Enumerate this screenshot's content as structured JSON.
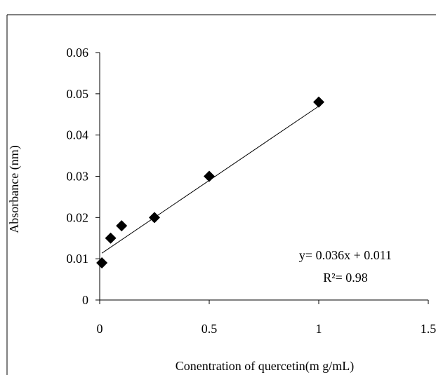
{
  "chart_data": {
    "type": "scatter",
    "title": "",
    "xlabel": "Conentration of quercetin(m g/mL)",
    "ylabel": "Absorbance (nm)",
    "xlim": [
      0,
      1.5
    ],
    "ylim": [
      0,
      0.06
    ],
    "x_ticks": [
      "0",
      "0.5",
      "1",
      "1.5"
    ],
    "y_ticks": [
      "0",
      "0.01",
      "0.02",
      "0.03",
      "0.04",
      "0.05",
      "0.06"
    ],
    "grid": false,
    "legend": "none",
    "series": [
      {
        "marker": "diamond",
        "color": "#000000",
        "x": [
          0.01,
          0.05,
          0.1,
          0.25,
          0.5,
          1.0
        ],
        "y": [
          0.009,
          0.015,
          0.018,
          0.02,
          0.03,
          0.048
        ]
      }
    ],
    "trendline": {
      "type": "linear",
      "slope": 0.036,
      "intercept": 0.011,
      "x_range": [
        0.01,
        1.0
      ],
      "color": "#000000"
    },
    "annotations": {
      "equation": "y= 0.036x + 0.011",
      "r_squared": "R²= 0.98"
    }
  }
}
